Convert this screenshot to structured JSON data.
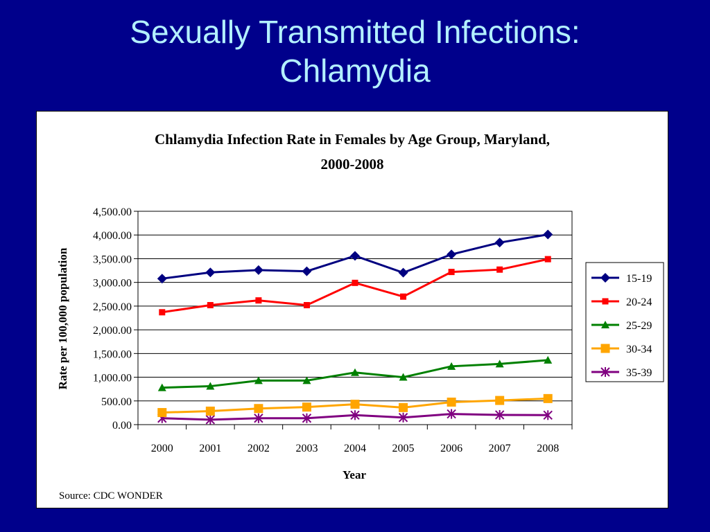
{
  "slide": {
    "title_line1": "Sexually Transmitted Infections:",
    "title_line2": "Chlamydia"
  },
  "colors": {
    "background": "#00008b",
    "title": "#b3f0ff",
    "series_15_19": "#000080",
    "series_20_24": "#ff0000",
    "series_25_29": "#008000",
    "series_30_34": "#ffa500",
    "series_35_39": "#800080"
  },
  "chart_data": {
    "type": "line",
    "title_line1": "Chlamydia Infection Rate in Females by Age Group, Maryland,",
    "title_line2": "2000-2008",
    "xlabel": "Year",
    "ylabel": "Rate per 100,000 population",
    "source": "Source: CDC WONDER",
    "ylim": [
      0,
      4500
    ],
    "yticks": [
      "0.00",
      "500.00",
      "1,000.00",
      "1,500.00",
      "2,000.00",
      "2,500.00",
      "3,000.00",
      "3,500.00",
      "4,000.00",
      "4,500.00"
    ],
    "categories": [
      "2000",
      "2001",
      "2002",
      "2003",
      "2004",
      "2005",
      "2006",
      "2007",
      "2008"
    ],
    "grid": true,
    "legend_position": "right",
    "series": [
      {
        "name": "15-19",
        "marker": "diamond",
        "color": "#000080",
        "values": [
          3080,
          3210,
          3260,
          3235,
          3560,
          3205,
          3590,
          3840,
          4010
        ]
      },
      {
        "name": "20-24",
        "marker": "square-small",
        "color": "#ff0000",
        "values": [
          2370,
          2520,
          2620,
          2520,
          2990,
          2700,
          3220,
          3270,
          3490
        ]
      },
      {
        "name": "25-29",
        "marker": "triangle",
        "color": "#008000",
        "values": [
          780,
          810,
          930,
          930,
          1100,
          1000,
          1230,
          1280,
          1360
        ]
      },
      {
        "name": "30-34",
        "marker": "square",
        "color": "#ffa500",
        "values": [
          255,
          285,
          340,
          370,
          430,
          360,
          475,
          510,
          550
        ]
      },
      {
        "name": "35-39",
        "marker": "star",
        "color": "#800080",
        "values": [
          135,
          105,
          135,
          135,
          200,
          150,
          225,
          205,
          200
        ]
      }
    ]
  }
}
